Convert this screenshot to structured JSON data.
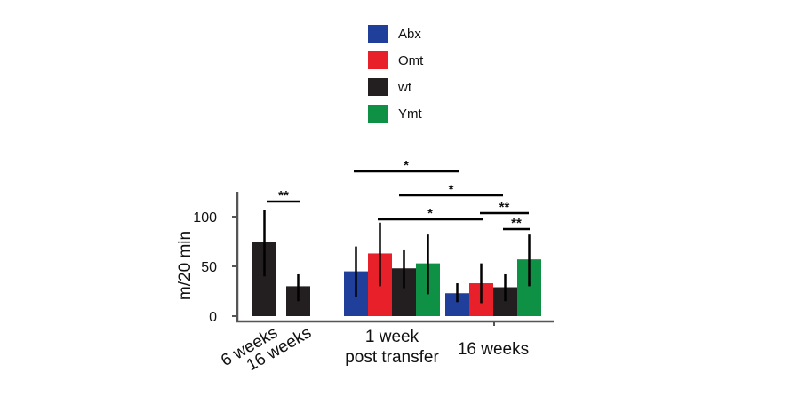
{
  "chart_data": {
    "type": "bar",
    "ylabel": "m/20 min",
    "ylim": [
      0,
      125
    ],
    "yticks": [
      0,
      50,
      100
    ],
    "grid": false,
    "legend_position": "top-center",
    "series": [
      {
        "name": "Abx",
        "color": "#1f3f9a"
      },
      {
        "name": "Omt",
        "color": "#e8202a"
      },
      {
        "name": "wt",
        "color": "#231f20"
      },
      {
        "name": "Ymt",
        "color": "#0f9145"
      }
    ],
    "groups": [
      {
        "label": "6 weeks",
        "label_rotated": true,
        "bars": [
          {
            "series": "wt",
            "value": 75,
            "error_low": 40,
            "error_high": 107
          }
        ]
      },
      {
        "label": "16 weeks",
        "label_rotated": true,
        "bars": [
          {
            "series": "wt",
            "value": 30,
            "error_low": 15,
            "error_high": 42
          }
        ]
      },
      {
        "label": "1 week\npost transfer",
        "label_rotated": false,
        "bars": [
          {
            "series": "Abx",
            "value": 45,
            "error_low": 19,
            "error_high": 70
          },
          {
            "series": "Omt",
            "value": 63,
            "error_low": 30,
            "error_high": 94
          },
          {
            "series": "wt",
            "value": 48,
            "error_low": 28,
            "error_high": 67
          },
          {
            "series": "Ymt",
            "value": 53,
            "error_low": 22,
            "error_high": 82
          }
        ]
      },
      {
        "label": "16 weeks",
        "label_rotated": false,
        "bars": [
          {
            "series": "Abx",
            "value": 23,
            "error_low": 14,
            "error_high": 33
          },
          {
            "series": "Omt",
            "value": 33,
            "error_low": 13,
            "error_high": 53
          },
          {
            "series": "wt",
            "value": 29,
            "error_low": 15,
            "error_high": 42
          },
          {
            "series": "Ymt",
            "value": 57,
            "error_low": 30,
            "error_high": 82
          }
        ]
      }
    ],
    "significance": [
      {
        "label": "**",
        "from": [
          0,
          0
        ],
        "to": [
          1,
          0
        ],
        "level": 0
      },
      {
        "label": "*",
        "from": [
          2,
          0
        ],
        "to": [
          3,
          0
        ],
        "level": 4
      },
      {
        "label": "*",
        "from": [
          2,
          2
        ],
        "to": [
          3,
          2
        ],
        "level": 3
      },
      {
        "label": "*",
        "from": [
          2,
          1
        ],
        "to": [
          3,
          1
        ],
        "level": 2
      },
      {
        "label": "**",
        "from": [
          3,
          0
        ],
        "to": [
          3,
          3
        ],
        "level": 1
      },
      {
        "label": "**",
        "from": [
          3,
          2
        ],
        "to": [
          3,
          3
        ],
        "level": 0
      }
    ]
  }
}
